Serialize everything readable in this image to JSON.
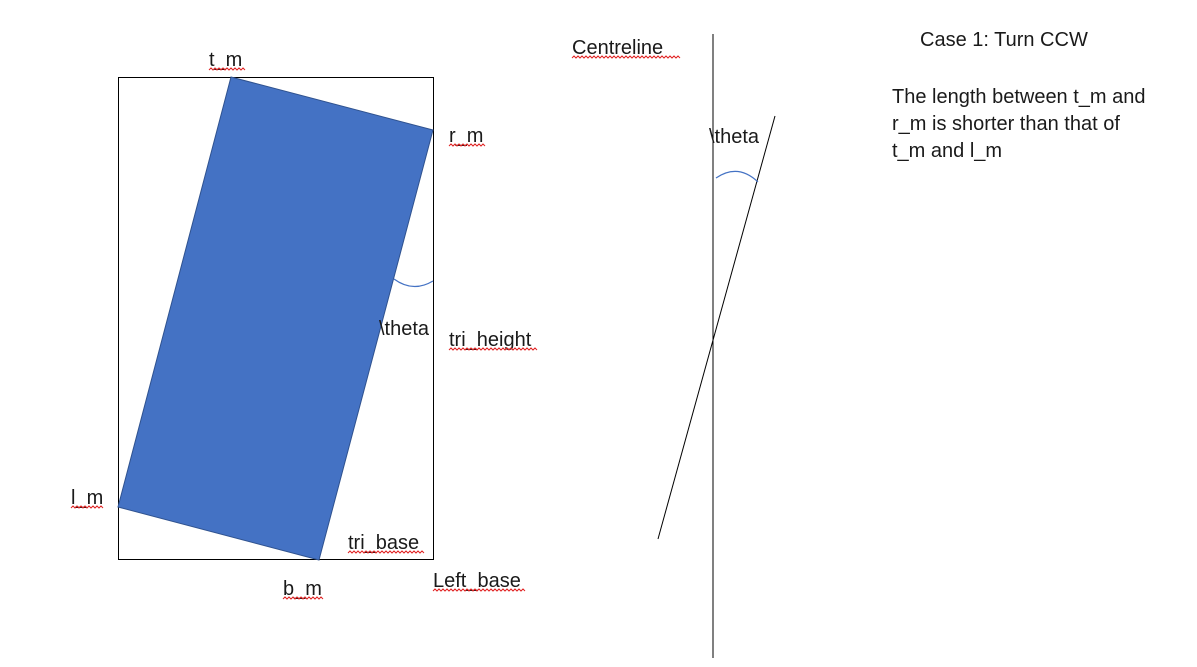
{
  "labels": {
    "t_m": "t_m",
    "r_m": "r_m",
    "l_m": "l_m",
    "b_m": "b_m",
    "tri_height": "tri_height",
    "tri_base": "tri_base",
    "left_base": "Left_base",
    "theta_box": "\\theta",
    "theta_line": "\\theta",
    "centreline": "Centreline"
  },
  "case_title": "Case 1: Turn CCW",
  "note": "The length between t_m and r_m is shorter than that of t_m and l_m",
  "colors": {
    "rectangle_fill": "#4472c4",
    "rectangle_stroke": "#2f528f",
    "angle_arc": "#4472c4",
    "line": "#000000",
    "spellcheck_underline": "#e02020"
  }
}
